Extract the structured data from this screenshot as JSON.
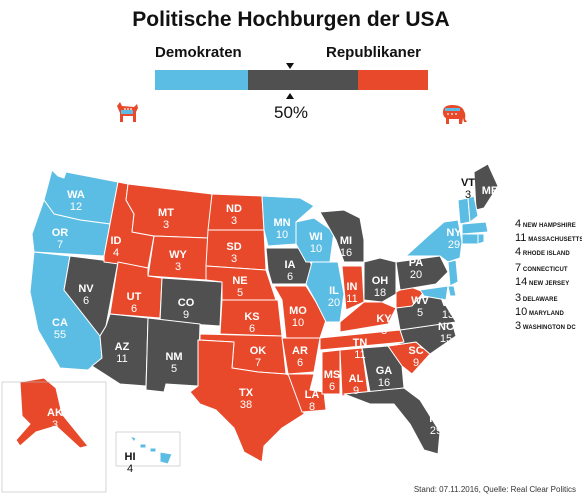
{
  "title": "Politische Hochburgen der USA",
  "legend": {
    "left_label": "Demokraten",
    "right_label": "Republikaner",
    "midpoint_label": "50%"
  },
  "colors": {
    "dem": "#5bbde4",
    "rep": "#e8492b",
    "neutral": "#505050"
  },
  "states": [
    {
      "abbr": "WA",
      "votes": "12",
      "party": "dem"
    },
    {
      "abbr": "OR",
      "votes": "7",
      "party": "dem"
    },
    {
      "abbr": "CA",
      "votes": "55",
      "party": "dem"
    },
    {
      "abbr": "NV",
      "votes": "6",
      "party": "neutral"
    },
    {
      "abbr": "ID",
      "votes": "4",
      "party": "rep"
    },
    {
      "abbr": "MT",
      "votes": "3",
      "party": "rep"
    },
    {
      "abbr": "WY",
      "votes": "3",
      "party": "rep"
    },
    {
      "abbr": "UT",
      "votes": "6",
      "party": "rep"
    },
    {
      "abbr": "CO",
      "votes": "9",
      "party": "neutral"
    },
    {
      "abbr": "AZ",
      "votes": "11",
      "party": "neutral"
    },
    {
      "abbr": "NM",
      "votes": "5",
      "party": "neutral"
    },
    {
      "abbr": "ND",
      "votes": "3",
      "party": "rep"
    },
    {
      "abbr": "SD",
      "votes": "3",
      "party": "rep"
    },
    {
      "abbr": "NE",
      "votes": "5",
      "party": "rep"
    },
    {
      "abbr": "KS",
      "votes": "6",
      "party": "rep"
    },
    {
      "abbr": "OK",
      "votes": "7",
      "party": "rep"
    },
    {
      "abbr": "TX",
      "votes": "38",
      "party": "rep"
    },
    {
      "abbr": "MN",
      "votes": "10",
      "party": "dem"
    },
    {
      "abbr": "IA",
      "votes": "6",
      "party": "neutral"
    },
    {
      "abbr": "MO",
      "votes": "10",
      "party": "rep"
    },
    {
      "abbr": "AR",
      "votes": "6",
      "party": "rep"
    },
    {
      "abbr": "LA",
      "votes": "8",
      "party": "rep"
    },
    {
      "abbr": "WI",
      "votes": "10",
      "party": "dem"
    },
    {
      "abbr": "IL",
      "votes": "20",
      "party": "dem"
    },
    {
      "abbr": "MI",
      "votes": "16",
      "party": "neutral"
    },
    {
      "abbr": "IN",
      "votes": "11",
      "party": "rep"
    },
    {
      "abbr": "OH",
      "votes": "18",
      "party": "neutral"
    },
    {
      "abbr": "KY",
      "votes": "8",
      "party": "rep"
    },
    {
      "abbr": "TN",
      "votes": "11",
      "party": "rep"
    },
    {
      "abbr": "MS",
      "votes": "6",
      "party": "rep"
    },
    {
      "abbr": "AL",
      "votes": "9",
      "party": "rep"
    },
    {
      "abbr": "GA",
      "votes": "16",
      "party": "neutral"
    },
    {
      "abbr": "FL",
      "votes": "29",
      "party": "neutral"
    },
    {
      "abbr": "SC",
      "votes": "9",
      "party": "rep"
    },
    {
      "abbr": "NC",
      "votes": "15",
      "party": "neutral"
    },
    {
      "abbr": "VA",
      "votes": "13",
      "party": "neutral"
    },
    {
      "abbr": "WV",
      "votes": "5",
      "party": "rep"
    },
    {
      "abbr": "PA",
      "votes": "20",
      "party": "neutral"
    },
    {
      "abbr": "NY",
      "votes": "29",
      "party": "dem"
    },
    {
      "abbr": "VT",
      "votes": "3",
      "party": "dem"
    },
    {
      "abbr": "ME",
      "votes": "4",
      "party": "neutral"
    },
    {
      "abbr": "AK",
      "votes": "3",
      "party": "rep"
    },
    {
      "abbr": "HI",
      "votes": "4",
      "party": "dem"
    }
  ],
  "small_states": [
    {
      "votes": "4",
      "name": "NEW HAMPSHIRE"
    },
    {
      "votes": "11",
      "name": "MASSACHUSETTS"
    },
    {
      "votes": "4",
      "name": "RHODE ISLAND"
    },
    {
      "votes": "7",
      "name": "CONNECTICUT"
    },
    {
      "votes": "14",
      "name": "NEW JERSEY"
    },
    {
      "votes": "3",
      "name": "DELAWARE"
    },
    {
      "votes": "10",
      "name": "MARYLAND"
    },
    {
      "votes": "3",
      "name": "WASHINGTON DC"
    }
  ],
  "source": "Stand: 07.11.2016, Quelle: Real Clear Politics"
}
